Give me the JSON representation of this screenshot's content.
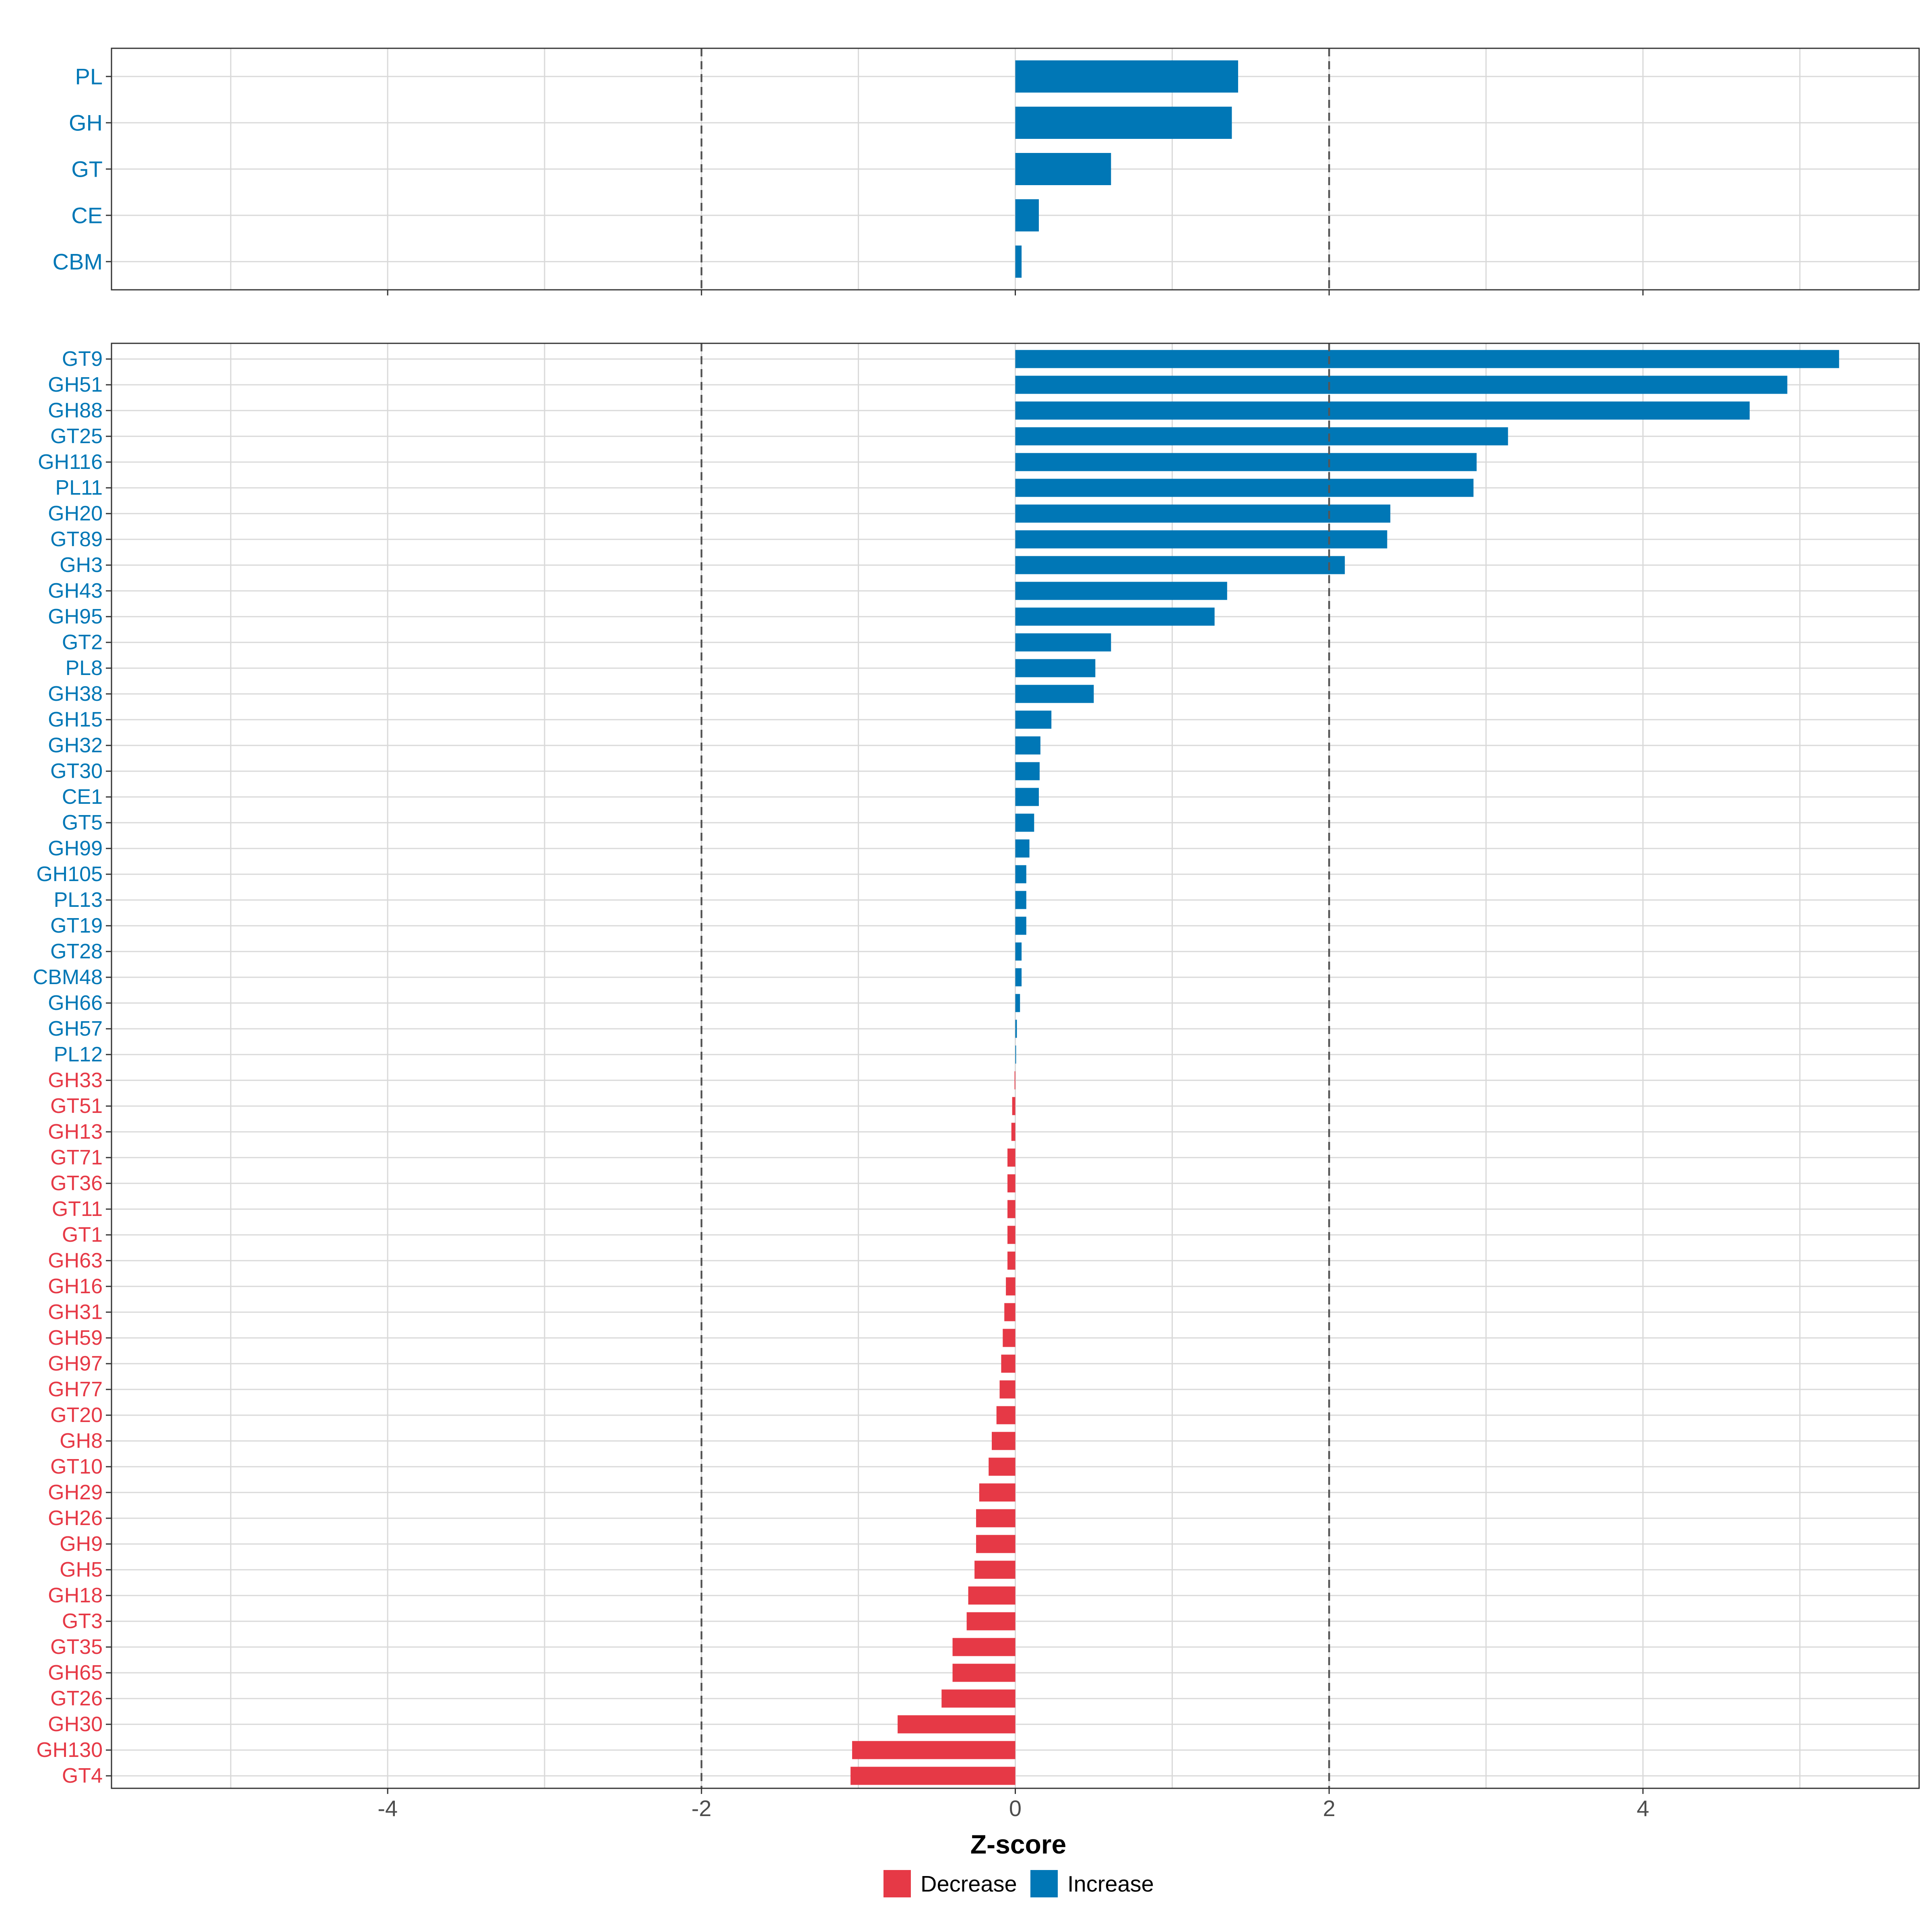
{
  "chart_data": [
    {
      "type": "bar",
      "orientation": "horizontal",
      "panel": "top",
      "categories": [
        "PL",
        "GH",
        "GT",
        "CE",
        "CBM"
      ],
      "values": [
        1.42,
        1.38,
        0.61,
        0.15,
        0.04
      ],
      "series": [
        {
          "name": "Increase",
          "values": [
            1.42,
            1.38,
            0.61,
            0.15,
            0.04
          ]
        }
      ],
      "xlim": [
        -5.76,
        5.76
      ],
      "reference_lines": [
        -2,
        2
      ],
      "grid": true
    },
    {
      "type": "bar",
      "orientation": "horizontal",
      "panel": "bottom",
      "categories": [
        "GT9",
        "GH51",
        "GH88",
        "GT25",
        "GH116",
        "PL11",
        "GH20",
        "GT89",
        "GH3",
        "GH43",
        "GH95",
        "GT2",
        "PL8",
        "GH38",
        "GH15",
        "GH32",
        "GT30",
        "CE1",
        "GT5",
        "GH99",
        "GH105",
        "PL13",
        "GT19",
        "GT28",
        "CBM48",
        "GH66",
        "GH57",
        "PL12",
        "GH33",
        "GT51",
        "GH13",
        "GT71",
        "GT36",
        "GT11",
        "GT1",
        "GH63",
        "GH16",
        "GH31",
        "GH59",
        "GH97",
        "GH77",
        "GT20",
        "GH8",
        "GT10",
        "GH29",
        "GH26",
        "GH9",
        "GH5",
        "GH18",
        "GT3",
        "GT35",
        "GH65",
        "GT26",
        "GH30",
        "GH130",
        "GT4"
      ],
      "values": [
        5.25,
        4.92,
        4.68,
        3.14,
        2.94,
        2.92,
        2.39,
        2.37,
        2.1,
        1.35,
        1.27,
        0.61,
        0.51,
        0.5,
        0.23,
        0.16,
        0.155,
        0.15,
        0.12,
        0.09,
        0.07,
        0.07,
        0.07,
        0.04,
        0.04,
        0.03,
        0.01,
        0.005,
        -0.005,
        -0.02,
        -0.025,
        -0.05,
        -0.05,
        -0.05,
        -0.05,
        -0.05,
        -0.06,
        -0.07,
        -0.08,
        -0.09,
        -0.1,
        -0.12,
        -0.15,
        -0.17,
        -0.23,
        -0.25,
        -0.25,
        -0.26,
        -0.3,
        -0.31,
        -0.4,
        -0.4,
        -0.47,
        -0.75,
        -1.04,
        -1.05
      ],
      "xlim": [
        -5.76,
        5.76
      ],
      "xticks": [
        -4,
        -2,
        0,
        2,
        4
      ],
      "xtick_labels": [
        "-4",
        "-2",
        "0",
        "2",
        "4"
      ],
      "xlabel": "Z-score",
      "reference_lines": [
        -2,
        2
      ],
      "grid": true
    }
  ],
  "legend": {
    "position": "bottom",
    "items": [
      {
        "label": "Decrease",
        "color": "#E63946"
      },
      {
        "label": "Increase",
        "color": "#0077B6"
      }
    ]
  },
  "colors": {
    "increase": "#0077B6",
    "decrease": "#E63946",
    "grid": "#D9D9D9",
    "panel_border": "#333333",
    "refline": "#555555"
  }
}
